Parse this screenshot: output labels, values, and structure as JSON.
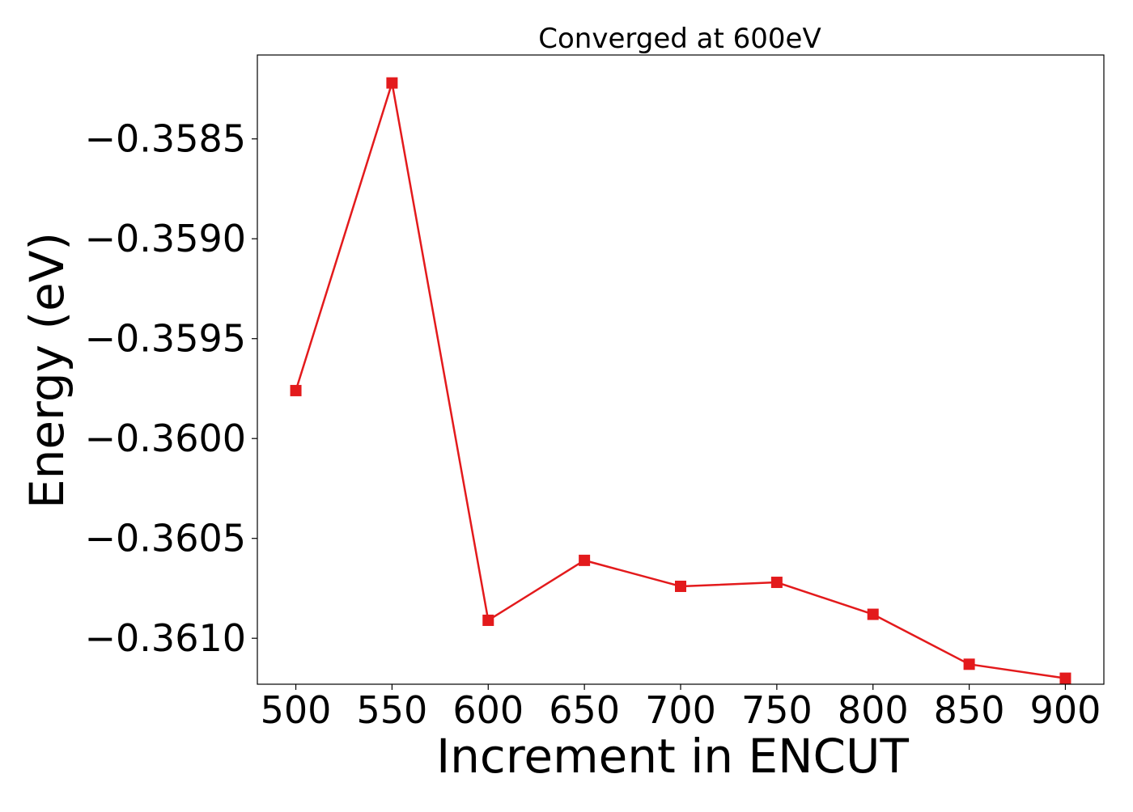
{
  "chart_data": {
    "type": "line",
    "title": "Converged at 600eV",
    "xlabel": "Increment in ENCUT",
    "ylabel": "Energy (eV)",
    "x": [
      500,
      550,
      600,
      650,
      700,
      750,
      800,
      850,
      900
    ],
    "series": [
      {
        "values": [
          -0.35976,
          -0.35822,
          -0.36091,
          -0.36061,
          -0.36074,
          -0.36072,
          -0.36088,
          -0.36113,
          -0.3612
        ],
        "color": "#e31a1c",
        "marker": "square"
      }
    ],
    "xticks": [
      500,
      550,
      600,
      650,
      700,
      750,
      800,
      850,
      900
    ],
    "xtick_labels": [
      "500",
      "550",
      "600",
      "650",
      "700",
      "750",
      "800",
      "850",
      "900"
    ],
    "yticks": [
      -0.3585,
      -0.359,
      -0.3595,
      -0.36,
      -0.3605,
      -0.361
    ],
    "ytick_labels": [
      "−0.3585",
      "−0.3590",
      "−0.3595",
      "−0.3600",
      "−0.3605",
      "−0.3610"
    ],
    "xlim": [
      480,
      920
    ],
    "ylim": [
      -0.36123,
      -0.35808
    ],
    "grid": false,
    "legend": "none"
  }
}
